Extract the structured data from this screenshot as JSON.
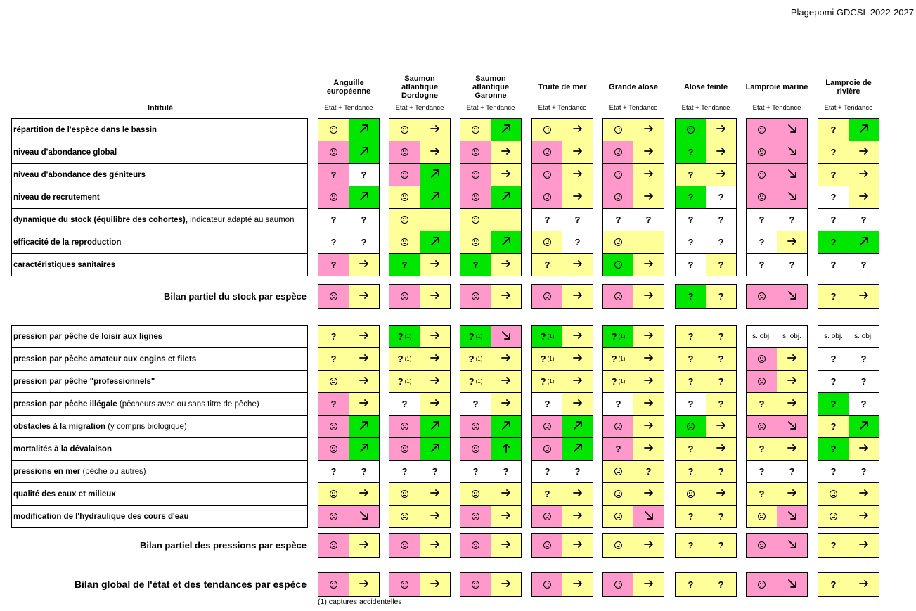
{
  "header": {
    "title": "Plagepomi GDCSL 2022-2027"
  },
  "table": {
    "intitule": "Intitulé",
    "subheader": "Etat + Tendance",
    "species": [
      "Anguille européenne",
      "Saumon atlantique Dordogne",
      "Saumon atlantique Garonne",
      "Truite de mer",
      "Grande alose",
      "Alose feinte",
      "Lamproie marine",
      "Lamproie de rivière"
    ],
    "stock_rows": [
      {
        "label": "répartition de l'espèce dans le bassin",
        "note": "",
        "cells": [
          [
            "Y:smile",
            "G:up"
          ],
          [
            "Y:smile",
            "Y:right"
          ],
          [
            "Y:smile",
            "G:up"
          ],
          [
            "Y:smile",
            "Y:right"
          ],
          [
            "Y:smile",
            "Y:right"
          ],
          [
            "G:smile",
            "Y:right"
          ],
          [
            "P:frown",
            "P:down"
          ],
          [
            "Y:?",
            "G:up"
          ]
        ]
      },
      {
        "label": "niveau d'abondance global",
        "note": "",
        "cells": [
          [
            "P:frown",
            "G:up"
          ],
          [
            "P:frown",
            "Y:right"
          ],
          [
            "P:frown",
            "Y:right"
          ],
          [
            "P:frown",
            "Y:right"
          ],
          [
            "P:frown",
            "Y:right"
          ],
          [
            "G:?",
            "Y:right"
          ],
          [
            "P:frown",
            "P:down"
          ],
          [
            "Y:?",
            "Y:right"
          ]
        ]
      },
      {
        "label": "niveau d'abondance des géniteurs",
        "note": "",
        "cells": [
          [
            "P:?",
            "W:?"
          ],
          [
            "P:frown",
            "G:up"
          ],
          [
            "P:frown",
            "Y:right"
          ],
          [
            "P:frown",
            "Y:right"
          ],
          [
            "P:frown",
            "Y:right"
          ],
          [
            "Y:?",
            "Y:right"
          ],
          [
            "P:frown",
            "P:down"
          ],
          [
            "Y:?",
            "Y:right"
          ]
        ]
      },
      {
        "label": "niveau de recrutement",
        "note": "",
        "cells": [
          [
            "P:frown",
            "G:up"
          ],
          [
            "Y:smile",
            "G:up"
          ],
          [
            "P:frown",
            "G:up"
          ],
          [
            "P:frown",
            "Y:right"
          ],
          [
            "P:frown",
            "Y:right"
          ],
          [
            "G:?",
            "W:?"
          ],
          [
            "P:frown",
            "P:down"
          ],
          [
            "W:?",
            "Y:right"
          ]
        ]
      },
      {
        "label": "dynamique du stock (équilibre des cohortes),",
        "note": "indicateur adapté au saumon",
        "cells": [
          [
            "W:?",
            "W:?"
          ],
          [
            "Y:smile",
            "Y:blank"
          ],
          [
            "Y:smile",
            "Y:blank"
          ],
          [
            "W:?",
            "W:?"
          ],
          [
            "W:?",
            "W:?"
          ],
          [
            "W:?",
            "W:?"
          ],
          [
            "W:?",
            "W:?"
          ],
          [
            "W:?",
            "W:?"
          ]
        ]
      },
      {
        "label": "efficacité de la reproduction",
        "note": "",
        "cells": [
          [
            "W:?",
            "W:?"
          ],
          [
            "Y:smile",
            "G:up"
          ],
          [
            "Y:smile",
            "G:up"
          ],
          [
            "Y:smile",
            "W:?"
          ],
          [
            "Y:smile",
            "Y:blank"
          ],
          [
            "W:?",
            "W:?"
          ],
          [
            "W:?",
            "Y:right"
          ],
          [
            "G:?",
            "G:up"
          ]
        ]
      },
      {
        "label": "caractéristiques sanitaires",
        "note": "",
        "cells": [
          [
            "P:?",
            "Y:right"
          ],
          [
            "G:?",
            "Y:right"
          ],
          [
            "G:?",
            "Y:right"
          ],
          [
            "Y:?",
            "Y:right"
          ],
          [
            "G:smile",
            "Y:right"
          ],
          [
            "W:?",
            "Y:?"
          ],
          [
            "W:?",
            "W:?"
          ],
          [
            "W:?",
            "W:?"
          ]
        ]
      }
    ],
    "stock_summary": {
      "label": "Bilan partiel du stock par espèce",
      "cells": [
        [
          "P:frown",
          "Y:right"
        ],
        [
          "P:frown",
          "Y:right"
        ],
        [
          "P:frown",
          "Y:right"
        ],
        [
          "P:frown",
          "Y:right"
        ],
        [
          "P:frown",
          "Y:right"
        ],
        [
          "G:?",
          "Y:?"
        ],
        [
          "P:frown",
          "P:down"
        ],
        [
          "Y:?",
          "Y:right"
        ]
      ]
    },
    "pressure_rows": [
      {
        "label": "pression par pêche de loisir aux lignes",
        "note": "",
        "cells": [
          [
            "Y:?",
            "Y:right"
          ],
          [
            "G:?1",
            "Y:right"
          ],
          [
            "G:?1",
            "P:down"
          ],
          [
            "G:?1",
            "Y:right"
          ],
          [
            "G:?1",
            "Y:right"
          ],
          [
            "Y:?",
            "Y:?"
          ],
          [
            "W:s. obj.",
            "W:s. obj."
          ],
          [
            "W:s. obj.",
            "W:s. obj."
          ]
        ]
      },
      {
        "label": "pression par pêche amateur aux engins et filets",
        "note": "",
        "cells": [
          [
            "Y:?",
            "Y:right"
          ],
          [
            "Y:?1",
            "Y:right"
          ],
          [
            "Y:?1",
            "Y:right"
          ],
          [
            "Y:?1",
            "Y:right"
          ],
          [
            "Y:?1",
            "Y:right"
          ],
          [
            "Y:?",
            "Y:?"
          ],
          [
            "P:frown",
            "Y:right"
          ],
          [
            "W:?",
            "W:?"
          ]
        ]
      },
      {
        "label": "pression par pêche \"professionnels\"",
        "note": "",
        "cells": [
          [
            "Y:neutral",
            "Y:right"
          ],
          [
            "Y:?1",
            "Y:right"
          ],
          [
            "Y:?1",
            "Y:right"
          ],
          [
            "Y:?1",
            "Y:right"
          ],
          [
            "Y:?1",
            "Y:right"
          ],
          [
            "Y:?",
            "Y:?"
          ],
          [
            "P:frown",
            "Y:right"
          ],
          [
            "W:?",
            "W:?"
          ]
        ]
      },
      {
        "label": "pression par pêche illégale",
        "note": "(pêcheurs avec ou sans titre de pêche)",
        "cells": [
          [
            "P:?",
            "Y:right"
          ],
          [
            "W:?",
            "Y:right"
          ],
          [
            "W:?",
            "Y:right"
          ],
          [
            "W:?",
            "Y:right"
          ],
          [
            "W:?",
            "Y:right"
          ],
          [
            "W:?",
            "Y:?"
          ],
          [
            "Y:?",
            "Y:right"
          ],
          [
            "G:?",
            "W:?"
          ]
        ]
      },
      {
        "label": "obstacles à la migration",
        "note": "(y compris biologique)",
        "cells": [
          [
            "P:frown",
            "G:up"
          ],
          [
            "P:frown",
            "G:up"
          ],
          [
            "P:frown",
            "G:up"
          ],
          [
            "P:frown",
            "G:up"
          ],
          [
            "P:frown",
            "Y:right"
          ],
          [
            "G:smile",
            "Y:right"
          ],
          [
            "P:frown",
            "P:down"
          ],
          [
            "Y:?",
            "G:up"
          ]
        ]
      },
      {
        "label": "mortalités à la dévalaison",
        "note": "",
        "cells": [
          [
            "P:frown",
            "G:up"
          ],
          [
            "P:frown",
            "G:up"
          ],
          [
            "P:frown",
            "G:upv"
          ],
          [
            "P:frown",
            "G:up"
          ],
          [
            "P:?",
            "Y:right"
          ],
          [
            "Y:?",
            "Y:right"
          ],
          [
            "Y:?",
            "Y:right"
          ],
          [
            "G:?",
            "Y:right"
          ]
        ]
      },
      {
        "label": "pressions en mer",
        "note": "(pêche ou autres)",
        "cells": [
          [
            "W:?",
            "W:?"
          ],
          [
            "W:?",
            "W:?"
          ],
          [
            "W:?",
            "W:?"
          ],
          [
            "W:?",
            "W:?"
          ],
          [
            "Y:neutral",
            "Y:?"
          ],
          [
            "Y:?",
            "Y:?"
          ],
          [
            "W:?",
            "W:?"
          ],
          [
            "W:?",
            "W:?"
          ]
        ]
      },
      {
        "label": "qualité des eaux et milieux",
        "note": "",
        "cells": [
          [
            "Y:neutral",
            "Y:right"
          ],
          [
            "Y:neutral",
            "Y:right"
          ],
          [
            "Y:neutral",
            "Y:right"
          ],
          [
            "Y:?",
            "Y:right"
          ],
          [
            "Y:neutral",
            "Y:right"
          ],
          [
            "Y:neutral",
            "Y:right"
          ],
          [
            "Y:?",
            "Y:right"
          ],
          [
            "Y:neutral",
            "Y:right"
          ]
        ]
      },
      {
        "label": "modification de l'hydraulique des cours d'eau",
        "note": "",
        "cells": [
          [
            "P:frown",
            "P:down"
          ],
          [
            "Y:neutral",
            "Y:right"
          ],
          [
            "P:frown",
            "Y:right"
          ],
          [
            "P:frown",
            "Y:right"
          ],
          [
            "Y:neutral",
            "P:down"
          ],
          [
            "Y:?",
            "Y:?"
          ],
          [
            "Y:neutral",
            "P:down"
          ],
          [
            "Y:neutral",
            "Y:right"
          ]
        ]
      }
    ],
    "pressure_summary": {
      "label": "Bilan partiel des pressions par espèce",
      "cells": [
        [
          "P:frown",
          "Y:right"
        ],
        [
          "P:frown",
          "Y:right"
        ],
        [
          "P:frown",
          "Y:right"
        ],
        [
          "P:frown",
          "Y:right"
        ],
        [
          "Y:smile",
          "Y:right"
        ],
        [
          "Y:?",
          "Y:?"
        ],
        [
          "P:frown",
          "P:down"
        ],
        [
          "Y:?",
          "Y:right"
        ]
      ]
    },
    "global_summary": {
      "label": "Bilan global de l'état et des tendances par espèce",
      "cells": [
        [
          "P:frown",
          "Y:right"
        ],
        [
          "P:frown",
          "Y:right"
        ],
        [
          "P:frown",
          "Y:right"
        ],
        [
          "P:frown",
          "Y:right"
        ],
        [
          "P:frown",
          "Y:right"
        ],
        [
          "Y:?",
          "Y:?"
        ],
        [
          "P:frown",
          "P:down"
        ],
        [
          "Y:?",
          "Y:right"
        ]
      ]
    }
  },
  "footnote": {
    "marker": "(1)",
    "text": "(1) captures accidentelles"
  }
}
